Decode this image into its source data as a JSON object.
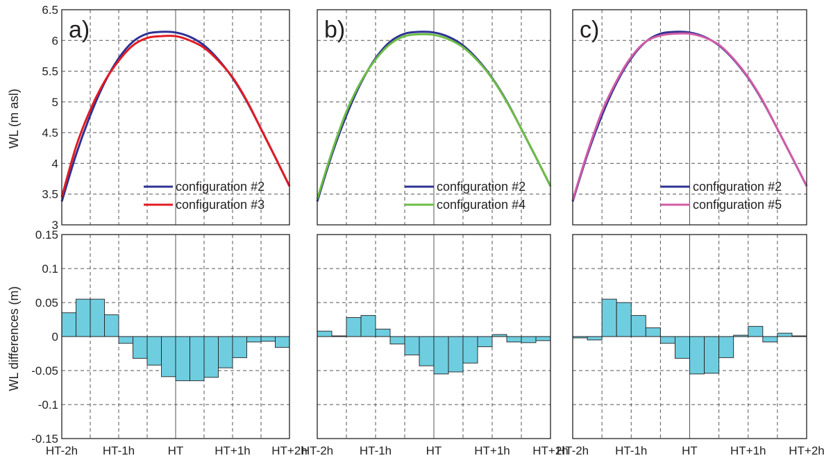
{
  "chart_data": {
    "type": "line+bar",
    "x_ticks": [
      "HT-2h",
      "HT-1h",
      "HT",
      "HT+1h",
      "HT+2h"
    ],
    "top_ylabel": "WL (m asl)",
    "bottom_ylabel": "WL differences (m)",
    "top_ylim": [
      3,
      6.5
    ],
    "top_yticks": [
      "3",
      "3.5",
      "4",
      "4.5",
      "5",
      "5.5",
      "6",
      "6.5"
    ],
    "bottom_ylim": [
      -0.15,
      0.15
    ],
    "bottom_yticks": [
      "-0.15",
      "-0.1",
      "-0.05",
      "0",
      "0.05",
      "0.1",
      "0.15"
    ],
    "x_hours": [
      -2.0,
      -1.75,
      -1.5,
      -1.25,
      -1.0,
      -0.75,
      -0.5,
      -0.25,
      0.0,
      0.25,
      0.5,
      0.75,
      1.0,
      1.25,
      1.5,
      1.75,
      2.0
    ],
    "reference_series": {
      "name": "configuration #2",
      "color": "#2e3192",
      "values": [
        3.38,
        4.14,
        4.78,
        5.31,
        5.71,
        5.98,
        6.11,
        6.14,
        6.13,
        6.06,
        5.92,
        5.69,
        5.39,
        5.01,
        4.56,
        4.1,
        3.63
      ]
    },
    "panels": [
      {
        "label": "a)",
        "series_name": "configuration #3",
        "color": "#e11b22",
        "values": [
          3.45,
          4.27,
          4.87,
          5.33,
          5.67,
          5.92,
          6.04,
          6.07,
          6.07,
          6.0,
          5.88,
          5.67,
          5.4,
          5.02,
          4.56,
          4.1,
          3.63
        ],
        "differences": [
          0.035,
          0.055,
          0.055,
          0.032,
          -0.01,
          -0.032,
          -0.042,
          -0.059,
          -0.065,
          -0.065,
          -0.06,
          -0.046,
          -0.031,
          -0.008,
          -0.007,
          -0.016
        ]
      },
      {
        "label": "b)",
        "series_name": "configuration #4",
        "color": "#6cbd45",
        "values": [
          3.42,
          4.18,
          4.84,
          5.33,
          5.69,
          5.94,
          6.07,
          6.1,
          6.09,
          6.02,
          5.89,
          5.67,
          5.38,
          5.0,
          4.56,
          4.1,
          3.63
        ],
        "differences": [
          0.008,
          0.001,
          0.028,
          0.031,
          0.011,
          -0.011,
          -0.027,
          -0.043,
          -0.055,
          -0.052,
          -0.039,
          -0.015,
          0.003,
          -0.008,
          -0.009,
          -0.006
        ]
      },
      {
        "label": "c)",
        "series_name": "configuration #5",
        "color": "#d05ca6",
        "values": [
          3.4,
          4.17,
          4.84,
          5.34,
          5.73,
          5.98,
          6.08,
          6.11,
          6.11,
          6.05,
          5.93,
          5.7,
          5.4,
          5.02,
          4.56,
          4.1,
          3.63
        ],
        "differences": [
          -0.002,
          -0.005,
          0.055,
          0.05,
          0.031,
          0.013,
          -0.01,
          -0.032,
          -0.055,
          -0.054,
          -0.031,
          0.002,
          0.015,
          -0.008,
          0.005,
          0.001
        ]
      }
    ]
  }
}
